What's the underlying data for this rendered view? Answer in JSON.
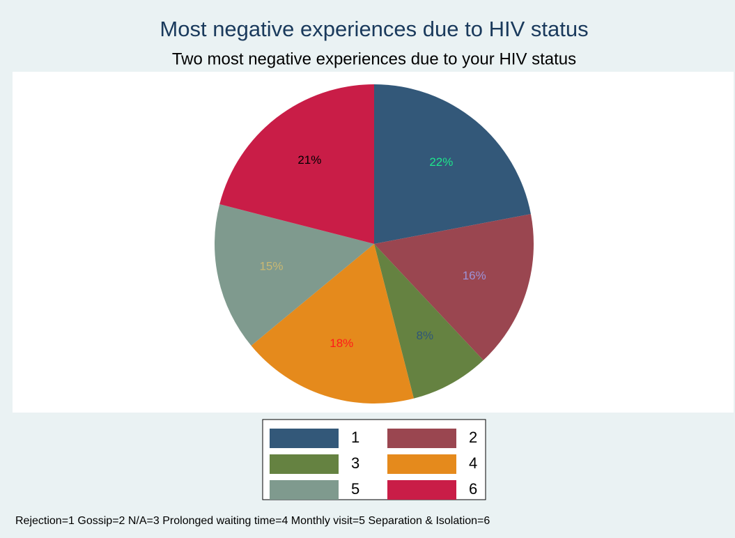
{
  "chart_data": {
    "type": "pie",
    "title": "Most negative experiences due to HIV status",
    "subtitle": "Two most negative experiences due to your HIV status",
    "categories": [
      "1",
      "2",
      "3",
      "4",
      "5",
      "6"
    ],
    "values": [
      22,
      16,
      8,
      18,
      15,
      21
    ],
    "value_labels": [
      "22%",
      "16%",
      "8%",
      "18%",
      "15%",
      "21%"
    ],
    "colors": [
      "#335879",
      "#9a4650",
      "#658241",
      "#e58a1c",
      "#7f9a8e",
      "#c91d47"
    ],
    "label_colors": [
      "#1ee68c",
      "#9d93d8",
      "#2f5679",
      "#ff1a1a",
      "#c9b872",
      "#000000"
    ],
    "legend": "bottom",
    "note": "Rejection=1 Gossip=2 N/A=3 Prolonged waiting time=4 Monthly visit=5 Separation & Isolation=6"
  }
}
